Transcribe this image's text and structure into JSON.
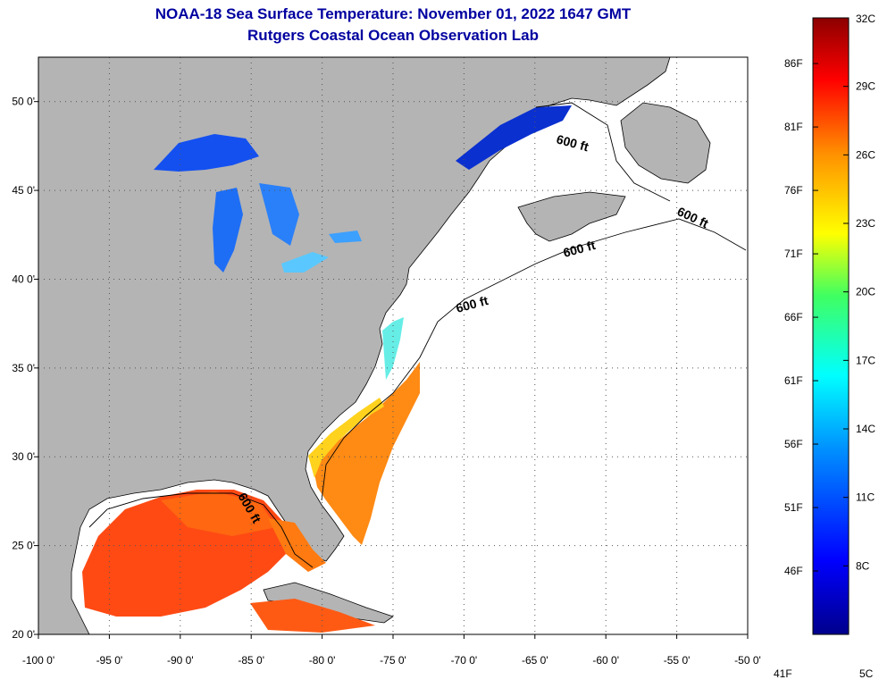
{
  "title": {
    "line1": "NOAA-18 Sea Surface Temperature:  November 01, 2022 1647 GMT",
    "line2": "Rutgers Coastal Ocean Observation Lab"
  },
  "colors": {
    "land": "#b4b4b4",
    "ocean_nodata": "#ffffff",
    "title": "#0000a0",
    "grid": "#555555"
  },
  "axes": {
    "lon_range": [
      -100,
      -50
    ],
    "lat_range": [
      20,
      52.5
    ],
    "x_ticks": [
      "-100 0'",
      "-95 0'",
      "-90 0'",
      "-85 0'",
      "-80 0'",
      "-75 0'",
      "-70 0'",
      "-65 0'",
      "-60 0'",
      "-55 0'",
      "-50 0'"
    ],
    "y_ticks": [
      "50 0'",
      "45 0'",
      "40 0'",
      "35 0'",
      "30 0'",
      "25 0'",
      "20 0'"
    ]
  },
  "contour_label": "600 ft",
  "colorbar": {
    "min_c": 5,
    "max_c": 32,
    "top_label": "32C",
    "bottom_left": "41F",
    "bottom_right": "5C",
    "celsius": [
      "29C",
      "26C",
      "23C",
      "20C",
      "17C",
      "14C",
      "11C",
      "8C"
    ],
    "fahrenheit": [
      "86F",
      "81F",
      "76F",
      "71F",
      "66F",
      "61F",
      "56F",
      "51F",
      "46F"
    ]
  }
}
